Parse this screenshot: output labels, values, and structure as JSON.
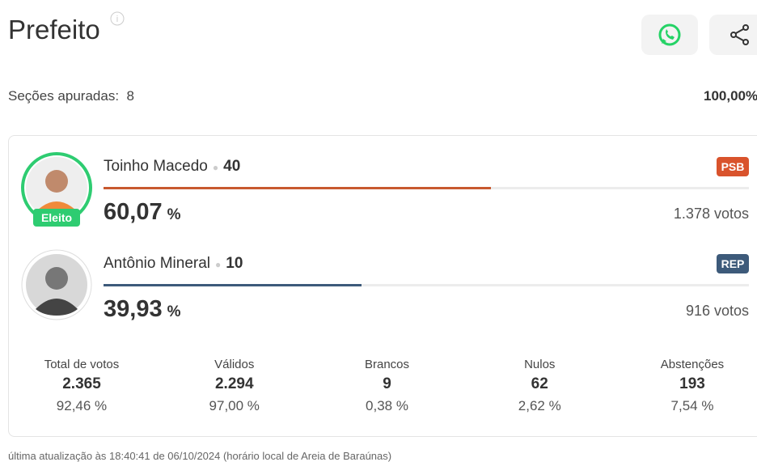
{
  "header": {
    "title": "Prefeito",
    "sections_label": "Seções apuradas:",
    "sections": 8,
    "percent_counted": "100,00%"
  },
  "candidates": [
    {
      "name": "Toinho Macedo",
      "number": 40,
      "party": "PSB",
      "party_color": "#d9532c",
      "bar_color": "#c8592f",
      "share": 60.07,
      "share_label": "60,07",
      "unit": "%",
      "votes": "1.378 votos",
      "badge": "Eleito"
    },
    {
      "name": "Antônio Mineral",
      "number": 10,
      "party": "REP",
      "party_color": "#3d5a7a",
      "bar_color": "#3d5a7a",
      "share": 39.93,
      "share_label": "39,93",
      "unit": "%",
      "votes": "916 votos"
    }
  ],
  "stats": [
    {
      "label": "Total de votos",
      "value": "2.365",
      "percent": "92,46 %"
    },
    {
      "label": "Válidos",
      "value": "2.294",
      "percent": "97,00 %"
    },
    {
      "label": "Brancos",
      "value": "9",
      "percent": "0,38 %"
    },
    {
      "label": "Nulos",
      "value": "62",
      "percent": "2,62 %"
    },
    {
      "label": "Abstenções",
      "value": "193",
      "percent": "7,54 %"
    }
  ],
  "footer": "última atualização às 18:40:41 de 06/10/2024 (horário local de Areia de Baraúnas)"
}
